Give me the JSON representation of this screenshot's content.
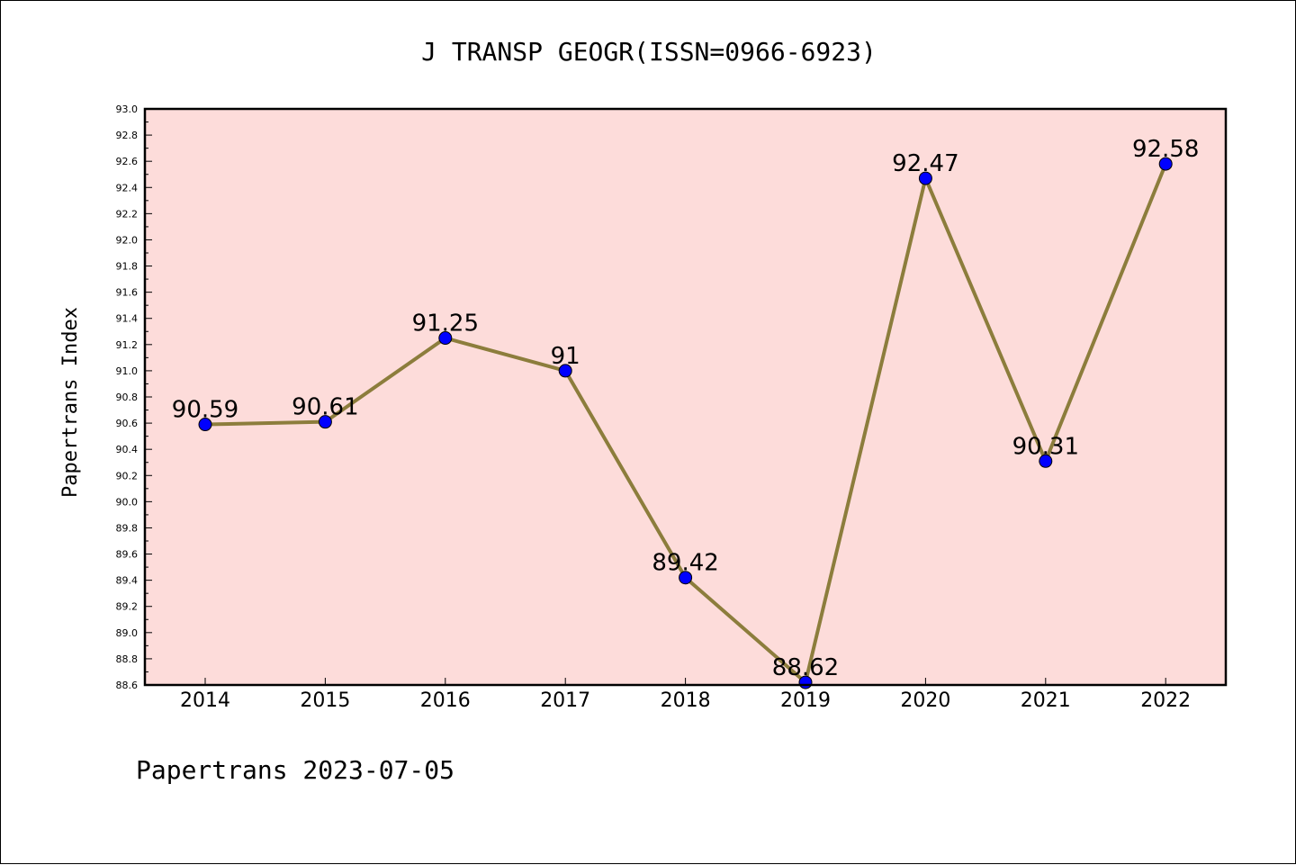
{
  "chart_data": {
    "type": "line",
    "title": "J TRANSP GEOGR(ISSN=0966-6923)",
    "xlabel": "",
    "ylabel": "Papertrans Index",
    "categories": [
      "2014",
      "2015",
      "2016",
      "2017",
      "2018",
      "2019",
      "2020",
      "2021",
      "2022"
    ],
    "series": [
      {
        "values": [
          90.59,
          90.61,
          91.25,
          91,
          89.42,
          88.62,
          92.47,
          90.31,
          92.58
        ],
        "labels": [
          "90.59",
          "90.61",
          "91.25",
          "91",
          "89.42",
          "88.62",
          "92.47",
          "90.31",
          "92.58"
        ]
      }
    ],
    "ylim": [
      88.6,
      93.0
    ],
    "yticks": [
      "88.6",
      "88.8",
      "89.0",
      "89.2",
      "89.4",
      "89.6",
      "89.8",
      "90.0",
      "90.2",
      "90.4",
      "90.6",
      "90.8",
      "91.0",
      "91.2",
      "91.4",
      "91.6",
      "91.8",
      "92.0",
      "92.2",
      "92.4",
      "92.6",
      "92.8",
      "93.0"
    ],
    "grid": false,
    "colors": {
      "plot_background": "#fddcda",
      "line": "#8c7d3c",
      "marker": "#0000ff"
    }
  },
  "footer": "Papertrans 2023-07-05"
}
